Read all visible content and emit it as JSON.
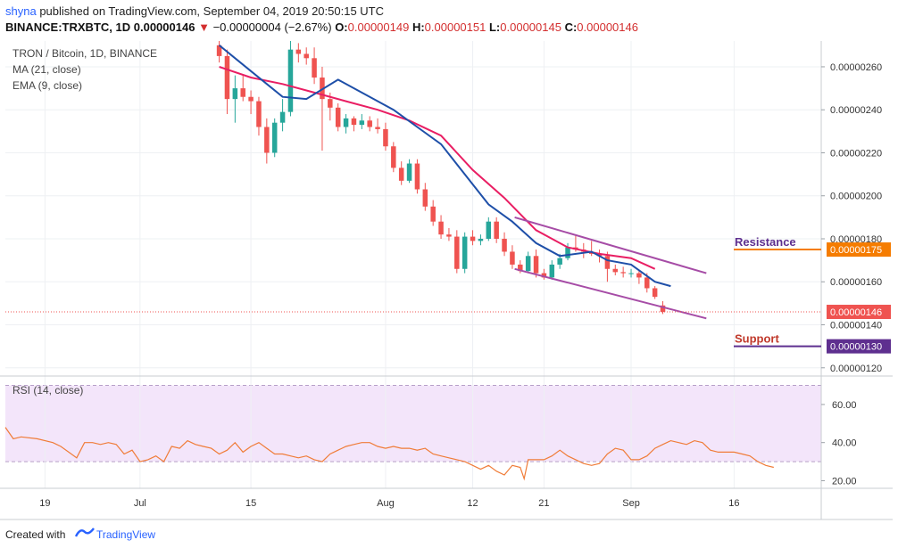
{
  "header": {
    "publisher": "shyna",
    "published_text": "published on TradingView.com, September 04, 2019 20:50:15 UTC",
    "symbol": "BINANCE:TRXBTC, 1D",
    "price": "0.00000146",
    "change_arrow": "▼",
    "change": "−0.00000004 (−2.67%)",
    "o_label": "O:",
    "o": "0.00000149",
    "h_label": "H:",
    "h": "0.00000151",
    "l_label": "L:",
    "l": "0.00000145",
    "c_label": "C:",
    "c": "0.00000146"
  },
  "legend": {
    "title": "TRON / Bitcoin, 1D, BINANCE",
    "ma": "MA (21, close)",
    "ema": "EMA (9, close)",
    "rsi": "RSI (14, close)"
  },
  "annotations": {
    "resistance": "Resistance",
    "support": "Support"
  },
  "footer": {
    "created_with": "Created with",
    "brand": "TradingView"
  },
  "colors": {
    "up": "#26a69a",
    "down": "#ef5350",
    "ma": "#e91e63",
    "ema": "#1e4fa8",
    "channel": "#a64ca6",
    "resistance": "#f57c00",
    "support": "#5e2f8f",
    "rsi": "#f07c38",
    "rsi_band": "#f3e5fa",
    "price_line": "#ef5350",
    "annotation_text": "#5e2f8f"
  },
  "chart_data": [
    {
      "type": "candlestick",
      "title": "TRON / Bitcoin, 1D, BINANCE",
      "x_ticks": [
        {
          "label": "19",
          "day": 0
        },
        {
          "label": "Jul",
          "day": 12
        },
        {
          "label": "15",
          "day": 26
        },
        {
          "label": "Aug",
          "day": 43
        },
        {
          "label": "12",
          "day": 54
        },
        {
          "label": "21",
          "day": 63
        },
        {
          "label": "Sep",
          "day": 74
        },
        {
          "label": "16",
          "day": 87
        }
      ],
      "y_ticks": [
        "0.00000260",
        "0.00000240",
        "0.00000220",
        "0.00000200",
        "0.00000180",
        "0.00000160",
        "0.00000140",
        "0.00000120"
      ],
      "ylim": [
        1.17e-06,
        2.72e-06
      ],
      "x_range_days": [
        -5,
        98
      ],
      "candles_first_day": 22,
      "ohlc": [
        [
          2.7,
          2.73,
          2.62,
          2.65
        ],
        [
          2.65,
          2.68,
          2.38,
          2.45
        ],
        [
          2.45,
          2.56,
          2.34,
          2.5
        ],
        [
          2.5,
          2.56,
          2.44,
          2.46
        ],
        [
          2.46,
          2.49,
          2.38,
          2.44
        ],
        [
          2.44,
          2.46,
          2.28,
          2.32
        ],
        [
          2.32,
          2.36,
          2.15,
          2.2
        ],
        [
          2.2,
          2.36,
          2.18,
          2.34
        ],
        [
          2.34,
          2.45,
          2.3,
          2.39
        ],
        [
          2.39,
          2.73,
          2.37,
          2.68
        ],
        [
          2.68,
          2.71,
          2.62,
          2.66
        ],
        [
          2.66,
          2.69,
          2.61,
          2.64
        ],
        [
          2.64,
          2.69,
          2.52,
          2.55
        ],
        [
          2.55,
          2.6,
          2.21,
          2.45
        ],
        [
          2.45,
          2.48,
          2.35,
          2.41
        ],
        [
          2.41,
          2.43,
          2.3,
          2.32
        ],
        [
          2.32,
          2.38,
          2.29,
          2.36
        ],
        [
          2.36,
          2.37,
          2.3,
          2.33
        ],
        [
          2.33,
          2.38,
          2.31,
          2.35
        ],
        [
          2.35,
          2.37,
          2.3,
          2.32
        ],
        [
          2.32,
          2.36,
          2.29,
          2.31
        ],
        [
          2.31,
          2.34,
          2.21,
          2.23
        ],
        [
          2.23,
          2.25,
          2.11,
          2.13
        ],
        [
          2.13,
          2.16,
          2.05,
          2.07
        ],
        [
          2.07,
          2.17,
          2.06,
          2.15
        ],
        [
          2.15,
          2.17,
          2.01,
          2.03
        ],
        [
          2.03,
          2.06,
          1.93,
          1.95
        ],
        [
          1.95,
          1.98,
          1.86,
          1.88
        ],
        [
          1.88,
          1.91,
          1.8,
          1.82
        ],
        [
          1.82,
          1.85,
          1.79,
          1.81
        ],
        [
          1.81,
          1.84,
          1.64,
          1.66
        ],
        [
          1.66,
          1.83,
          1.64,
          1.81
        ],
        [
          1.81,
          1.84,
          1.77,
          1.79
        ],
        [
          1.79,
          1.82,
          1.77,
          1.8
        ],
        [
          1.8,
          1.9,
          1.79,
          1.88
        ],
        [
          1.88,
          1.9,
          1.78,
          1.8
        ],
        [
          1.8,
          1.83,
          1.72,
          1.74
        ],
        [
          1.74,
          1.77,
          1.66,
          1.68
        ],
        [
          1.68,
          1.7,
          1.64,
          1.65
        ],
        [
          1.65,
          1.74,
          1.64,
          1.72
        ],
        [
          1.72,
          1.75,
          1.62,
          1.64
        ],
        [
          1.64,
          1.66,
          1.61,
          1.62
        ],
        [
          1.62,
          1.7,
          1.61,
          1.68
        ],
        [
          1.68,
          1.73,
          1.66,
          1.71
        ],
        [
          1.71,
          1.78,
          1.7,
          1.76
        ],
        [
          1.76,
          1.82,
          1.74,
          1.75
        ],
        [
          1.75,
          1.78,
          1.71,
          1.74
        ],
        [
          1.74,
          1.79,
          1.72,
          1.73
        ],
        [
          1.73,
          1.75,
          1.69,
          1.72
        ],
        [
          1.72,
          1.74,
          1.6,
          1.66
        ],
        [
          1.66,
          1.68,
          1.63,
          1.645
        ],
        [
          1.645,
          1.67,
          1.62,
          1.64
        ],
        [
          1.64,
          1.66,
          1.62,
          1.64
        ],
        [
          1.64,
          1.65,
          1.59,
          1.62
        ],
        [
          1.62,
          1.64,
          1.55,
          1.57
        ],
        [
          1.57,
          1.58,
          1.52,
          1.53
        ],
        [
          1.49,
          1.51,
          1.45,
          1.46
        ]
      ],
      "ohlc_unit": "1e-6",
      "ma_21": [
        [
          22,
          2.6
        ],
        [
          26,
          2.55
        ],
        [
          30,
          2.52
        ],
        [
          34,
          2.48
        ],
        [
          38,
          2.44
        ],
        [
          42,
          2.4
        ],
        [
          46,
          2.35
        ],
        [
          50,
          2.28
        ],
        [
          54,
          2.12
        ],
        [
          58,
          1.99
        ],
        [
          62,
          1.84
        ],
        [
          66,
          1.76
        ],
        [
          70,
          1.73
        ],
        [
          74,
          1.71
        ],
        [
          77,
          1.66
        ]
      ],
      "ema_9": [
        [
          22,
          2.7
        ],
        [
          26,
          2.58
        ],
        [
          30,
          2.46
        ],
        [
          33,
          2.45
        ],
        [
          37,
          2.54
        ],
        [
          40,
          2.48
        ],
        [
          44,
          2.4
        ],
        [
          47,
          2.32
        ],
        [
          50,
          2.24
        ],
        [
          53,
          2.1
        ],
        [
          56,
          1.96
        ],
        [
          59,
          1.88
        ],
        [
          62,
          1.78
        ],
        [
          65,
          1.72
        ],
        [
          69,
          1.74
        ],
        [
          71,
          1.7
        ],
        [
          74,
          1.68
        ],
        [
          77,
          1.6
        ],
        [
          79,
          1.58
        ]
      ],
      "channel_upper": [
        [
          59.3,
          1.9
        ],
        [
          83.5,
          1.64
        ]
      ],
      "channel_lower": [
        [
          59.3,
          1.66
        ],
        [
          83.5,
          1.43
        ]
      ],
      "resistance_level": "0.00000175",
      "support_level": "0.00000130",
      "last_price": "0.00000146"
    },
    {
      "type": "line",
      "title": "RSI (14, close)",
      "y_ticks": [
        "60.00",
        "40.00",
        "20.00"
      ],
      "ylim": [
        16,
        74
      ],
      "band": [
        30,
        70
      ],
      "series": [
        {
          "values": [
            [
              -5,
              48
            ],
            [
              -4,
              42
            ],
            [
              -3,
              43
            ],
            [
              -1,
              42
            ],
            [
              1,
              40
            ],
            [
              2,
              38
            ],
            [
              4,
              32
            ],
            [
              5,
              40
            ],
            [
              6,
              40
            ],
            [
              7,
              39
            ],
            [
              8,
              40
            ],
            [
              9,
              39
            ],
            [
              10,
              34
            ],
            [
              11,
              36
            ],
            [
              12,
              30
            ],
            [
              13,
              31
            ],
            [
              14,
              33
            ],
            [
              15,
              30
            ],
            [
              16,
              38
            ],
            [
              17,
              37
            ],
            [
              18,
              41
            ],
            [
              19,
              39
            ],
            [
              20,
              38
            ],
            [
              21,
              37
            ],
            [
              22,
              34
            ],
            [
              23,
              36
            ],
            [
              24,
              40
            ],
            [
              25,
              35
            ],
            [
              26,
              38
            ],
            [
              27,
              40
            ],
            [
              28,
              37
            ],
            [
              29,
              34
            ],
            [
              30,
              34
            ],
            [
              31,
              33
            ],
            [
              32,
              32
            ],
            [
              33,
              33
            ],
            [
              34,
              31
            ],
            [
              35,
              30
            ],
            [
              36,
              34
            ],
            [
              37,
              36
            ],
            [
              38,
              38
            ],
            [
              39,
              39
            ],
            [
              40,
              40
            ],
            [
              41,
              40
            ],
            [
              42,
              38
            ],
            [
              43,
              37
            ],
            [
              44,
              38
            ],
            [
              45,
              37
            ],
            [
              46,
              37
            ],
            [
              47,
              36
            ],
            [
              48,
              37
            ],
            [
              49,
              34
            ],
            [
              50,
              33
            ],
            [
              51,
              32
            ],
            [
              52,
              31
            ],
            [
              53,
              30
            ],
            [
              54,
              28
            ],
            [
              55,
              26
            ],
            [
              56,
              28
            ],
            [
              57,
              25
            ],
            [
              58,
              23
            ],
            [
              59,
              28
            ],
            [
              60,
              27
            ],
            [
              60.5,
              21
            ],
            [
              61,
              31
            ],
            [
              62,
              31
            ],
            [
              63,
              31
            ],
            [
              64,
              33
            ],
            [
              65,
              36
            ],
            [
              66,
              33
            ],
            [
              67,
              31
            ],
            [
              68,
              29
            ],
            [
              69,
              28
            ],
            [
              70,
              29
            ],
            [
              71,
              34
            ],
            [
              72,
              37
            ],
            [
              73,
              36
            ],
            [
              74,
              31
            ],
            [
              75,
              31
            ],
            [
              76,
              33
            ],
            [
              77,
              37
            ],
            [
              78,
              39
            ],
            [
              79,
              41
            ],
            [
              80,
              40
            ],
            [
              81,
              39
            ],
            [
              82,
              41
            ],
            [
              83,
              40
            ],
            [
              84,
              36
            ],
            [
              85,
              35
            ],
            [
              86,
              35
            ],
            [
              87,
              35
            ],
            [
              88,
              34
            ],
            [
              89,
              33
            ],
            [
              90,
              30
            ],
            [
              91,
              28
            ],
            [
              92,
              27
            ]
          ]
        }
      ]
    }
  ]
}
